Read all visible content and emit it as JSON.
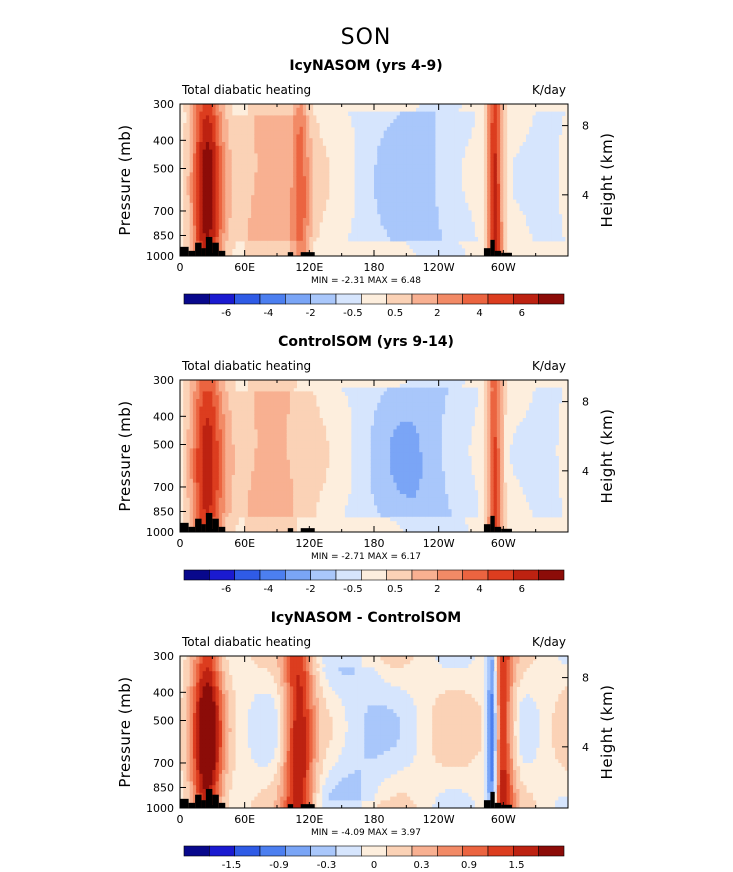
{
  "figure": {
    "title": "SON",
    "colors": {
      "diverging": [
        "#08088c",
        "#1a1ad0",
        "#2f5be6",
        "#4c7ff0",
        "#7aa5f6",
        "#a9c7fb",
        "#d6e5fd",
        "#fdeedd",
        "#fbd2b6",
        "#f8b091",
        "#f28a66",
        "#eb6440",
        "#dc3d1f",
        "#bd2211",
        "#8c0c08"
      ],
      "land": "#000000"
    }
  },
  "chart_data": [
    {
      "type": "heatmap",
      "title": "IcyNASOM (yrs 4-9)",
      "left_label": "Total diabatic heating",
      "right_label": "K/day",
      "ylabel": "Pressure (mb)",
      "ylabel_right": "Height (km)",
      "x_ticks": [
        "0",
        "60E",
        "120E",
        "180",
        "120W",
        "60W"
      ],
      "y_ticks": [
        "300",
        "400",
        "500",
        "700",
        "850",
        "1000"
      ],
      "y2_ticks": [
        "8",
        "4"
      ],
      "stats_text": "MIN =   -2.31   MAX =    6.48",
      "min": -2.31,
      "max": 6.48,
      "colorbar_labels": [
        "-6",
        "-4",
        "-2",
        "-0.5",
        "0.5",
        "2",
        "4",
        "6"
      ],
      "features": [
        {
          "lon": 25,
          "width": 20,
          "top_p": 300,
          "bottom_p": 1000,
          "value": 6.0
        },
        {
          "lon": 85,
          "width": 55,
          "top_p": 330,
          "bottom_p": 900,
          "value": 1.8
        },
        {
          "lon": 112,
          "width": 12,
          "top_p": 300,
          "bottom_p": 1000,
          "value": 2.5
        },
        {
          "lon": 215,
          "width": 70,
          "top_p": 320,
          "bottom_p": 880,
          "value": -1.8
        },
        {
          "lon": 292,
          "width": 10,
          "top_p": 300,
          "bottom_p": 1000,
          "value": 5.5
        },
        {
          "lon": 340,
          "width": 30,
          "top_p": 320,
          "bottom_p": 880,
          "value": -0.8
        }
      ]
    },
    {
      "type": "heatmap",
      "title": "ControlSOM (yrs 9-14)",
      "left_label": "Total diabatic heating",
      "right_label": "K/day",
      "ylabel": "Pressure (mb)",
      "ylabel_right": "Height (km)",
      "x_ticks": [
        "0",
        "60E",
        "120E",
        "180",
        "120W",
        "60W"
      ],
      "y_ticks": [
        "300",
        "400",
        "500",
        "700",
        "850",
        "1000"
      ],
      "y2_ticks": [
        "8",
        "4"
      ],
      "stats_text": "MIN =   -2.71   MAX =    6.17",
      "min": -2.71,
      "max": 6.17,
      "colorbar_labels": [
        "-6",
        "-4",
        "-2",
        "-0.5",
        "0.5",
        "2",
        "4",
        "6"
      ],
      "features": [
        {
          "lon": 25,
          "width": 22,
          "top_p": 300,
          "bottom_p": 1000,
          "value": 5.0
        },
        {
          "lon": 85,
          "width": 55,
          "top_p": 330,
          "bottom_p": 900,
          "value": 1.8
        },
        {
          "lon": 215,
          "width": 70,
          "top_p": 320,
          "bottom_p": 880,
          "value": -2.2
        },
        {
          "lon": 292,
          "width": 10,
          "top_p": 300,
          "bottom_p": 1000,
          "value": 4.5
        },
        {
          "lon": 340,
          "width": 30,
          "top_p": 320,
          "bottom_p": 880,
          "value": -0.8
        }
      ]
    },
    {
      "type": "heatmap",
      "title": "IcyNASOM - ControlSOM",
      "left_label": "Total diabatic heating",
      "right_label": "K/day",
      "ylabel": "Pressure (mb)",
      "ylabel_right": "Height (km)",
      "x_ticks": [
        "0",
        "60E",
        "120E",
        "180",
        "120W",
        "60W"
      ],
      "y_ticks": [
        "300",
        "400",
        "500",
        "700",
        "850",
        "1000"
      ],
      "y2_ticks": [
        "8",
        "4"
      ],
      "stats_text": "MIN =   -4.09   MAX =    3.97",
      "min": -4.09,
      "max": 3.97,
      "colorbar_labels": [
        "-1.5",
        "-0.9",
        "-0.3",
        "0",
        "0.3",
        "0.9",
        "1.5"
      ],
      "features": [
        {
          "lon": 25,
          "width": 20,
          "top_p": 300,
          "bottom_p": 1000,
          "value": 1.8
        },
        {
          "lon": 110,
          "width": 20,
          "top_p": 300,
          "bottom_p": 1000,
          "value": 1.6
        },
        {
          "lon": 290,
          "width": 8,
          "top_p": 300,
          "bottom_p": 1000,
          "value": -1.8
        },
        {
          "lon": 298,
          "width": 16,
          "top_p": 300,
          "bottom_p": 1000,
          "value": 1.6
        },
        {
          "lon": 160,
          "width": 40,
          "top_p": 330,
          "bottom_p": 950,
          "value": -0.4
        }
      ]
    }
  ]
}
